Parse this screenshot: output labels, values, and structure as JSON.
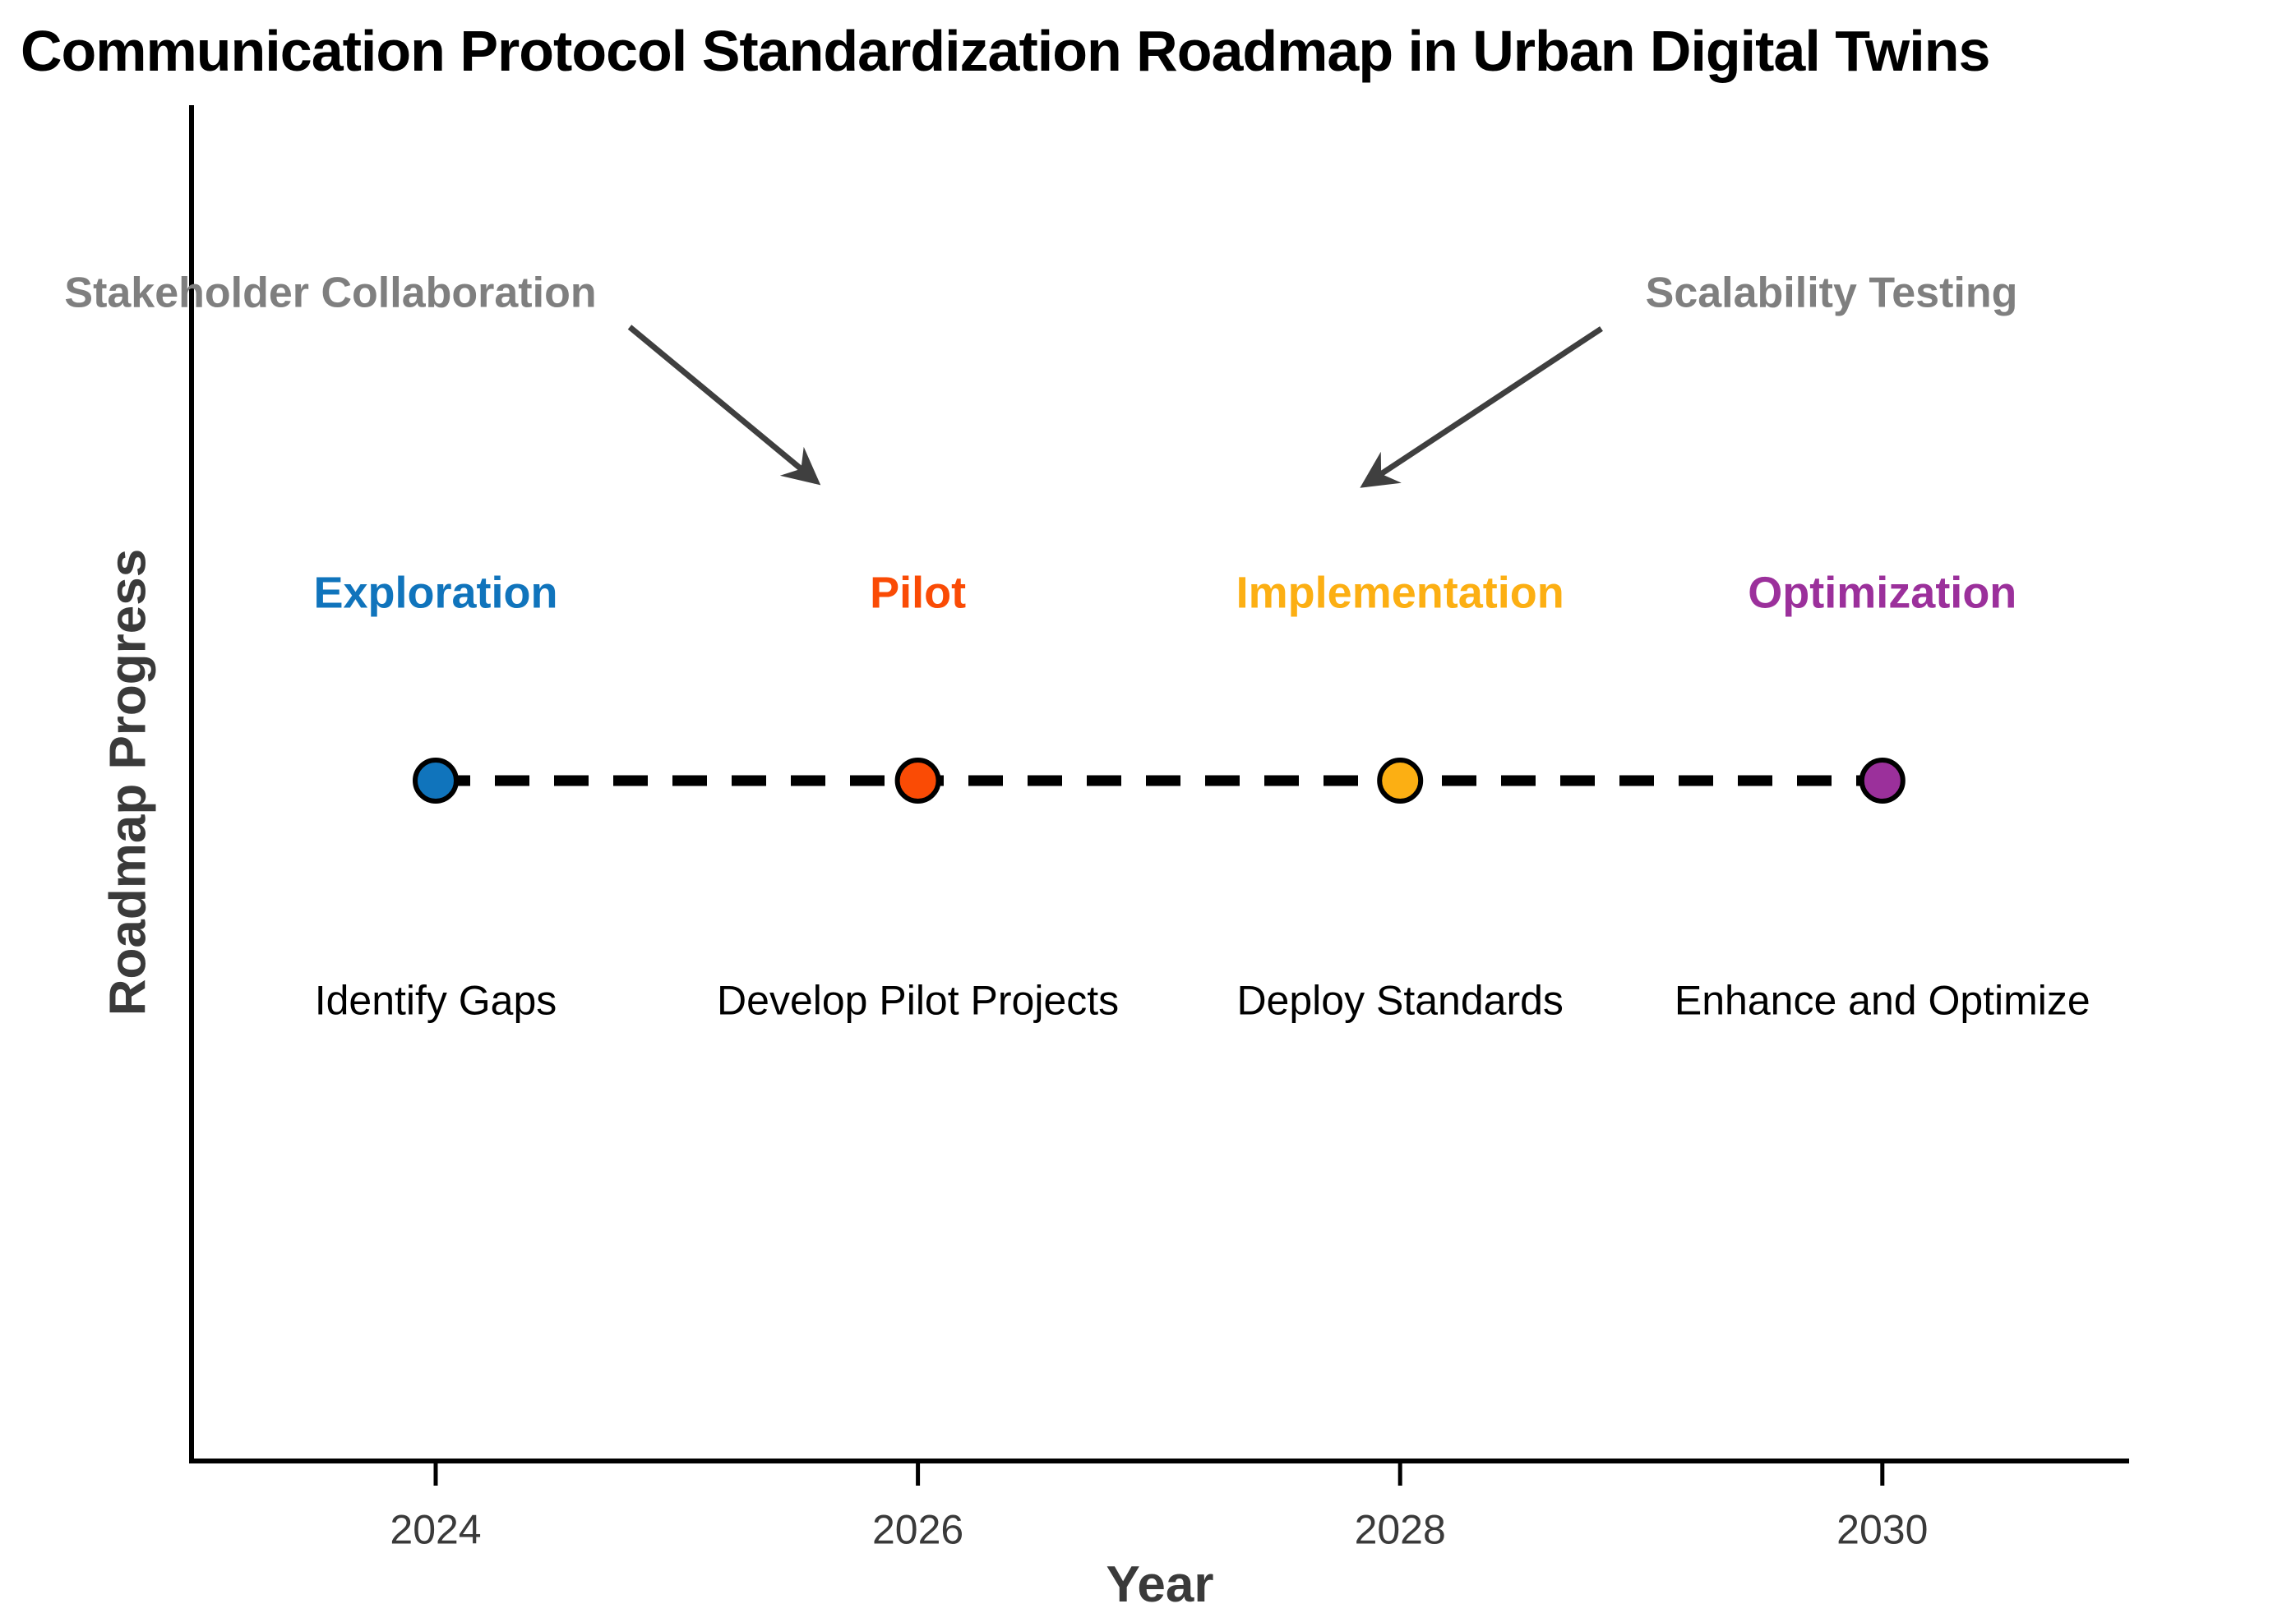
{
  "title": "Communication Protocol Standardization Roadmap in Urban Digital Twins",
  "chart_data": {
    "type": "scatter",
    "subtype": "timeline-roadmap",
    "title": "Communication Protocol Standardization Roadmap in Urban Digital Twins",
    "xlabel": "Year",
    "ylabel": "Roadmap Progress",
    "x_ticks": [
      "2024",
      "2026",
      "2028",
      "2030"
    ],
    "xlim": [
      2023,
      2031
    ],
    "grid": false,
    "legend": null,
    "line_style": "dashed",
    "line_color": "#000000",
    "marker_edge_color": "#000000",
    "milestones": [
      {
        "year": 2024,
        "phase": "Exploration",
        "action": "Identify Gaps",
        "color": "#1074BC"
      },
      {
        "year": 2026,
        "phase": "Pilot",
        "action": "Develop Pilot Projects",
        "color": "#FA4B05"
      },
      {
        "year": 2028,
        "phase": "Implementation",
        "action": "Deploy Standards",
        "color": "#FCAF13"
      },
      {
        "year": 2030,
        "phase": "Optimization",
        "action": "Enhance and Optimize",
        "color": "#9B309B"
      }
    ],
    "annotations": [
      {
        "text": "Stakeholder Collaboration",
        "color": "#7F7F7F",
        "arrow_color": "#3F3F3F",
        "points_toward": "Pilot"
      },
      {
        "text": "Scalability Testing",
        "color": "#7F7F7F",
        "arrow_color": "#3F3F3F",
        "points_toward": "Implementation"
      }
    ],
    "axis_color": "#000000",
    "tick_text_color": "#3a3a3a"
  }
}
